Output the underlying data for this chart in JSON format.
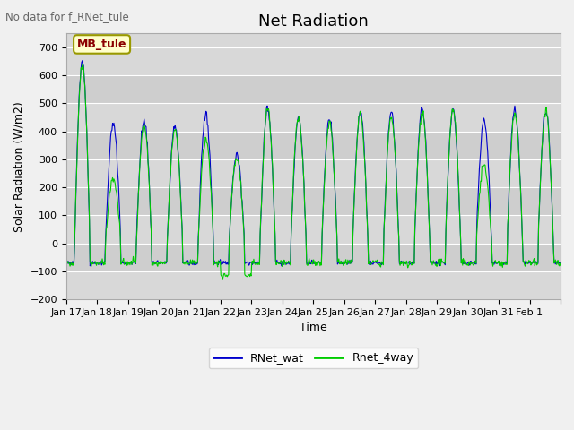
{
  "title": "Net Radiation",
  "xlabel": "Time",
  "ylabel": "Solar Radiation (W/m2)",
  "ylim": [
    -200,
    750
  ],
  "yticks": [
    -200,
    -100,
    0,
    100,
    200,
    300,
    400,
    500,
    600,
    700
  ],
  "n_days": 16,
  "xtick_positions": [
    0,
    1,
    2,
    3,
    4,
    5,
    6,
    7,
    8,
    9,
    10,
    11,
    12,
    13,
    14,
    15,
    16
  ],
  "xtick_labels": [
    "Jan 17",
    "Jan 18",
    "Jan 19",
    "Jan 20",
    "Jan 21",
    "Jan 22",
    "Jan 23",
    "Jan 24",
    "Jan 25",
    "Jan 26",
    "Jan 27",
    "Jan 28",
    "Jan 29",
    "Jan 30",
    "Jan 31",
    "Feb 1",
    ""
  ],
  "line1_color": "#0000cc",
  "line2_color": "#00cc00",
  "line1_label": "RNet_wat",
  "line2_label": "Rnet_4way",
  "annotation_text": "MB_tule",
  "no_data_text": "No data for f_RNet_tule",
  "peaks_wat": [
    650,
    430,
    440,
    420,
    460,
    320,
    480,
    450,
    440,
    470,
    460,
    475,
    480,
    440,
    475,
    475
  ],
  "peaks_4way": [
    640,
    230,
    420,
    410,
    375,
    310,
    480,
    450,
    430,
    460,
    450,
    470,
    475,
    280,
    465,
    470
  ],
  "title_fontsize": 13,
  "label_fontsize": 9,
  "tick_fontsize": 8
}
